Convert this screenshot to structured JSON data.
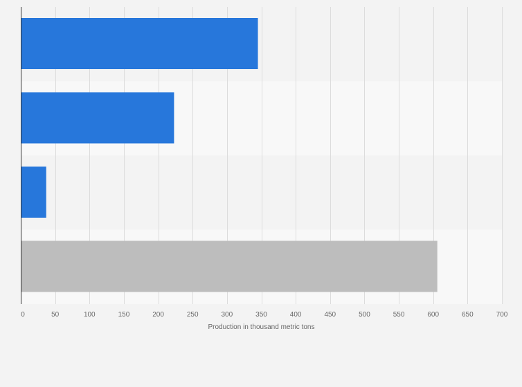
{
  "chart_data": {
    "type": "bar",
    "orientation": "horizontal",
    "categories": [
      "",
      "",
      "",
      ""
    ],
    "values": [
      345,
      223,
      37,
      606
    ],
    "bar_colors": [
      "#2777db",
      "#2777db",
      "#2777db",
      "#bdbdbd"
    ],
    "title": "",
    "xlabel": "Production in thousand metric tons",
    "ylabel": "",
    "xlim": [
      0,
      700
    ],
    "xticks": [
      0,
      50,
      100,
      150,
      200,
      250,
      300,
      350,
      400,
      450,
      500,
      550,
      600,
      650,
      700
    ],
    "grid": true,
    "legend": "none"
  },
  "colors": {
    "background": "#f3f3f3",
    "band_dark": "#f3f3f3",
    "band_light": "#f8f8f8",
    "gridline": "#dcdcdc",
    "axis": "#333333"
  }
}
